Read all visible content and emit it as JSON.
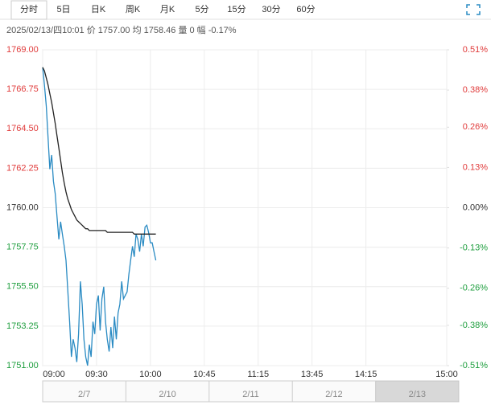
{
  "tabs": [
    "分时",
    "5日",
    "日K",
    "周K",
    "月K",
    "5分",
    "15分",
    "30分",
    "60分"
  ],
  "selected_tab": 0,
  "info": "2025/02/13/四10:01 价 1757.00 均 1758.46 量 0 幅 -0.17%",
  "chart_data": {
    "type": "line",
    "x": [
      0,
      1,
      2,
      3,
      4,
      5,
      6,
      7,
      8,
      9,
      10,
      11,
      12,
      13,
      14,
      15,
      16,
      17,
      18,
      19,
      20,
      21,
      22,
      23,
      24,
      25,
      26,
      27,
      28,
      29,
      30,
      31,
      32,
      33,
      34,
      35,
      36,
      37,
      38,
      39,
      40,
      41,
      42,
      43,
      44,
      45,
      46,
      47,
      48,
      49,
      50,
      51,
      52,
      53,
      54,
      55,
      56,
      57,
      58,
      59,
      60,
      61,
      62,
      63
    ],
    "series": [
      {
        "color": "#2a8bc3",
        "values": [
          1768.0,
          1767.0,
          1765.8,
          1764.0,
          1762.2,
          1763.0,
          1761.5,
          1760.8,
          1759.5,
          1758.2,
          1759.2,
          1758.5,
          1757.8,
          1757.0,
          1755.3,
          1753.5,
          1751.5,
          1752.5,
          1752.0,
          1751.2,
          1752.8,
          1755.8,
          1754.5,
          1752.5,
          1751.5,
          1751.0,
          1752.2,
          1751.5,
          1753.5,
          1752.8,
          1754.5,
          1755.0,
          1753.0,
          1754.8,
          1755.5,
          1753.5,
          1752.5,
          1751.8,
          1753.2,
          1752.0,
          1753.8,
          1752.5,
          1754.0,
          1754.5,
          1755.8,
          1754.8,
          1755.0,
          1755.2,
          1756.2,
          1757.0,
          1757.8,
          1757.2,
          1758.5,
          1758.2,
          1757.5,
          1758.5,
          1757.8,
          1758.9,
          1759.0,
          1758.6,
          1758.0,
          1758.0,
          1757.5,
          1757.0
        ]
      },
      {
        "color": "#222222",
        "values": [
          1768.0,
          1767.8,
          1767.4,
          1767.0,
          1766.5,
          1766.0,
          1765.4,
          1764.8,
          1764.1,
          1763.4,
          1762.7,
          1762.0,
          1761.4,
          1760.9,
          1760.5,
          1760.2,
          1759.9,
          1759.7,
          1759.5,
          1759.3,
          1759.2,
          1759.1,
          1759.0,
          1758.9,
          1758.8,
          1758.8,
          1758.7,
          1758.7,
          1758.7,
          1758.7,
          1758.7,
          1758.7,
          1758.7,
          1758.7,
          1758.7,
          1758.7,
          1758.6,
          1758.6,
          1758.6,
          1758.6,
          1758.6,
          1758.6,
          1758.6,
          1758.6,
          1758.6,
          1758.6,
          1758.6,
          1758.6,
          1758.6,
          1758.6,
          1758.6,
          1758.5,
          1758.5,
          1758.5,
          1758.5,
          1758.5,
          1758.5,
          1758.5,
          1758.5,
          1758.5,
          1758.5,
          1758.5,
          1758.5,
          1758.5
        ]
      }
    ],
    "xlim": [
      0,
      225
    ],
    "xticks": [
      {
        "value": 0,
        "label": "09:00"
      },
      {
        "value": 30,
        "label": "09:30"
      },
      {
        "value": 60,
        "label": "10:00"
      },
      {
        "value": 90,
        "label": "10:45"
      },
      {
        "value": 120,
        "label": "11:15"
      },
      {
        "value": 150,
        "label": "13:45"
      },
      {
        "value": 180,
        "label": "14:15"
      },
      {
        "value": 225,
        "label": "15:00"
      }
    ],
    "ylim": [
      1751,
      1769
    ],
    "yticks": [
      {
        "value": 1751,
        "label": "1751.00"
      },
      {
        "value": 1753.25,
        "label": "1753.25"
      },
      {
        "value": 1755.5,
        "label": "1755.50"
      },
      {
        "value": 1757.75,
        "label": "1757.75"
      },
      {
        "value": 1760,
        "label": "1760.00"
      },
      {
        "value": 1762.25,
        "label": "1762.25"
      },
      {
        "value": 1764.5,
        "label": "1764.50"
      },
      {
        "value": 1766.75,
        "label": "1766.75"
      },
      {
        "value": 1769,
        "label": "1769.00"
      }
    ],
    "y2lim": [
      -0.51,
      0.51
    ],
    "y2ticks": [
      {
        "value": -0.51,
        "label": "-0.51%"
      },
      {
        "value": -0.38,
        "label": "-0.38%"
      },
      {
        "value": -0.26,
        "label": "-0.26%"
      },
      {
        "value": -0.13,
        "label": "-0.13%"
      },
      {
        "value": 0,
        "label": "0.00%"
      },
      {
        "value": 0.13,
        "label": "0.13%"
      },
      {
        "value": 0.26,
        "label": "0.26%"
      },
      {
        "value": 0.38,
        "label": "0.38%"
      },
      {
        "value": 0.51,
        "label": "0.51%"
      }
    ],
    "grid": true,
    "up_color": "#e03b3b",
    "down_color": "#1e9e3e",
    "flat_color": "#333333"
  },
  "navigator": {
    "dates": [
      "2/7",
      "2/10",
      "2/11",
      "2/12",
      "2/13"
    ],
    "selected": 4
  }
}
